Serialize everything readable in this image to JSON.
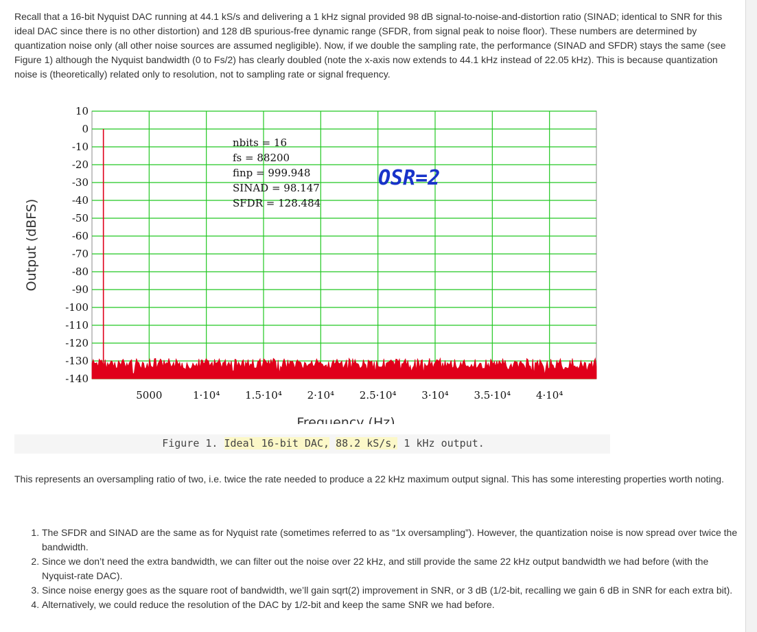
{
  "intro_paragraph": "Recall that a 16-bit Nyquist DAC running at 44.1 kS/s and delivering a 1 kHz signal provided 98 dB signal-to-noise-and-distortion ratio (SINAD; identical to SNR for this ideal DAC since there is no other distortion) and 128 dB spurious-free dynamic range (SFDR, from signal peak to noise floor). These numbers are determined by quantization noise only (all other noise sources are assumed negligible). Now, if we double the sampling rate, the performance (SINAD and SFDR) stays the same (see Figure 1) although the Nyquist bandwidth (0 to Fs/2) has clearly doubled (note the x-axis now extends to 44.1 kHz instead of 22.05 kHz). This is because quantization noise is (theoretically) related only to resolution, not to sampling rate or signal frequency.",
  "figure": {
    "caption_prefix": "Figure 1.",
    "caption_part1": "Ideal 16-bit DAC,",
    "caption_part2": "88.2 kS/s,",
    "caption_suffix": "1 kHz output."
  },
  "chart_data": {
    "type": "line",
    "xlabel": "Frequency (Hz)",
    "ylabel": "Output (dBFS)",
    "xlim": [
      0,
      44100
    ],
    "ylim": [
      -140,
      10
    ],
    "x_ticks": [
      {
        "value": 5000,
        "label": "5000"
      },
      {
        "value": 10000,
        "label": "1·10⁴"
      },
      {
        "value": 15000,
        "label": "1.5·10⁴"
      },
      {
        "value": 20000,
        "label": "2·10⁴"
      },
      {
        "value": 25000,
        "label": "2.5·10⁴"
      },
      {
        "value": 30000,
        "label": "3·10⁴"
      },
      {
        "value": 35000,
        "label": "3.5·10⁴"
      },
      {
        "value": 40000,
        "label": "4·10⁴"
      }
    ],
    "y_ticks": [
      10,
      0,
      -10,
      -20,
      -30,
      -40,
      -50,
      -60,
      -70,
      -80,
      -90,
      -100,
      -110,
      -120,
      -130,
      -140
    ],
    "grid": true,
    "series": [
      {
        "color": "#e0001a",
        "peak": {
          "x": 1000,
          "y": 0
        },
        "noise_floor": -128.5,
        "noise_min": -140
      }
    ],
    "annotations": [
      {
        "label": "nbits",
        "value": "16"
      },
      {
        "label": "fs",
        "value": "88200"
      },
      {
        "label": "finp",
        "value": "999.948"
      },
      {
        "label": "SINAD",
        "value": "98.147"
      },
      {
        "label": "SFDR",
        "value": "128.484"
      }
    ],
    "overlay_label": "OSR=2",
    "colors": {
      "grid": "#22c822",
      "trace": "#e0001a",
      "overlay": "#1833c9"
    }
  },
  "second_paragraph": "This represents an oversampling ratio of two, i.e. twice the rate needed to produce a 22 kHz maximum output signal. This has some interesting properties worth noting.",
  "list_items": [
    "The SFDR and SINAD are the same as for Nyquist rate (sometimes referred to as “1x oversampling”). However, the quantization noise is now spread over twice the bandwidth.",
    "Since we don’t need the extra bandwidth, we can filter out the noise over 22 kHz, and still provide the same 22 kHz output bandwidth we had before (with the Nyquist-rate DAC).",
    "Since noise energy goes as the square root of bandwidth, we’ll gain sqrt(2) improvement in SNR, or 3 dB (1/2-bit, recalling we gain 6 dB in SNR for each extra bit).",
    "Alternatively, we could reduce the resolution of the DAC by 1/2-bit and keep the same SNR we had before."
  ]
}
